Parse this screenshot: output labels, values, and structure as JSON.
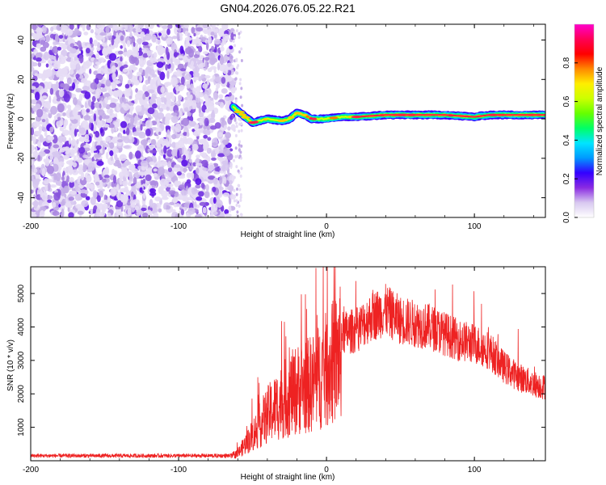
{
  "page_title": "GN04.2026.076.05.22.R21",
  "chart_data": [
    {
      "type": "heatmap",
      "title": "GN04.2026.076.05.22.R21",
      "xlabel": "Height of straight line (km)",
      "ylabel": "Frequency (Hz)",
      "xlim": [
        -200,
        148
      ],
      "ylim": [
        -50,
        48
      ],
      "xticks": [
        -200,
        -100,
        0,
        100
      ],
      "yticks": [
        40,
        20,
        0,
        -20,
        -40
      ],
      "x_tick_labels": [
        "-200",
        "-100",
        "0",
        "100"
      ],
      "y_tick_labels": [
        "40",
        "20",
        "0",
        "-20",
        "-40"
      ],
      "colorbar": {
        "label": "Normalized spectral amplitude",
        "range": [
          0,
          1
        ],
        "ticks": [
          0.0,
          0.2,
          0.4,
          0.6,
          0.8
        ],
        "tick_labels": [
          "0.0",
          "0.2",
          "0.4",
          "0.6",
          "0.8"
        ],
        "colors": [
          "#ffffff",
          "#d8c8f0",
          "#8a2be2",
          "#3300ff",
          "#0099ff",
          "#00e5ff",
          "#00ff66",
          "#66ff00",
          "#ccff00",
          "#ffee00",
          "#ff8800",
          "#ff0000",
          "#ff0055",
          "#ff00cc"
        ]
      },
      "regions": [
        {
          "name": "noise",
          "x_range": [
            -200,
            -63
          ],
          "freq_range": [
            -50,
            48
          ],
          "amplitude": "0.0-0.2"
        },
        {
          "name": "signal",
          "x_range": [
            -63,
            148
          ],
          "freq_center": 1,
          "amplitude": "0.6-1.0"
        }
      ],
      "signal_trace": [
        {
          "x": -63,
          "f": 6
        },
        {
          "x": -55,
          "f": 1
        },
        {
          "x": -50,
          "f": -2
        },
        {
          "x": -45,
          "f": -1
        },
        {
          "x": -40,
          "f": 0
        },
        {
          "x": -30,
          "f": -1
        },
        {
          "x": -25,
          "f": 0
        },
        {
          "x": -20,
          "f": 3
        },
        {
          "x": -15,
          "f": 2
        },
        {
          "x": -10,
          "f": 0
        },
        {
          "x": 0,
          "f": 0
        },
        {
          "x": 10,
          "f": 1
        },
        {
          "x": 20,
          "f": 1
        },
        {
          "x": 40,
          "f": 2
        },
        {
          "x": 80,
          "f": 2
        },
        {
          "x": 100,
          "f": 1
        },
        {
          "x": 110,
          "f": 2
        },
        {
          "x": 148,
          "f": 2
        }
      ]
    },
    {
      "type": "line",
      "xlabel": "Height of straight line (km)",
      "ylabel": "SNR (10 * v/v)",
      "xlim": [
        -200,
        148
      ],
      "ylim": [
        0,
        5800
      ],
      "xticks": [
        -200,
        -100,
        0,
        100
      ],
      "yticks": [
        1000,
        2000,
        3000,
        4000,
        5000
      ],
      "x_tick_labels": [
        "-200",
        "-100",
        "0",
        "100"
      ],
      "y_tick_labels": [
        "1000",
        "2000",
        "3000",
        "4000",
        "5000"
      ],
      "line_color": "#ee2222",
      "envelope": [
        {
          "x": -200,
          "y": 150
        },
        {
          "x": -150,
          "y": 150
        },
        {
          "x": -100,
          "y": 150
        },
        {
          "x": -65,
          "y": 150
        },
        {
          "x": -60,
          "y": 250
        },
        {
          "x": -50,
          "y": 900
        },
        {
          "x": -40,
          "y": 1600
        },
        {
          "x": -30,
          "y": 2100
        },
        {
          "x": -20,
          "y": 2500
        },
        {
          "x": -10,
          "y": 2700
        },
        {
          "x": 0,
          "y": 3200
        },
        {
          "x": 10,
          "y": 3800
        },
        {
          "x": 20,
          "y": 3900
        },
        {
          "x": 30,
          "y": 4300
        },
        {
          "x": 40,
          "y": 4500
        },
        {
          "x": 50,
          "y": 4200
        },
        {
          "x": 60,
          "y": 4100
        },
        {
          "x": 70,
          "y": 4000
        },
        {
          "x": 80,
          "y": 3800
        },
        {
          "x": 90,
          "y": 3600
        },
        {
          "x": 100,
          "y": 3500
        },
        {
          "x": 110,
          "y": 3300
        },
        {
          "x": 120,
          "y": 2800
        },
        {
          "x": 130,
          "y": 2500
        },
        {
          "x": 140,
          "y": 2300
        },
        {
          "x": 148,
          "y": 2200
        }
      ],
      "peak_max": 5800
    }
  ]
}
